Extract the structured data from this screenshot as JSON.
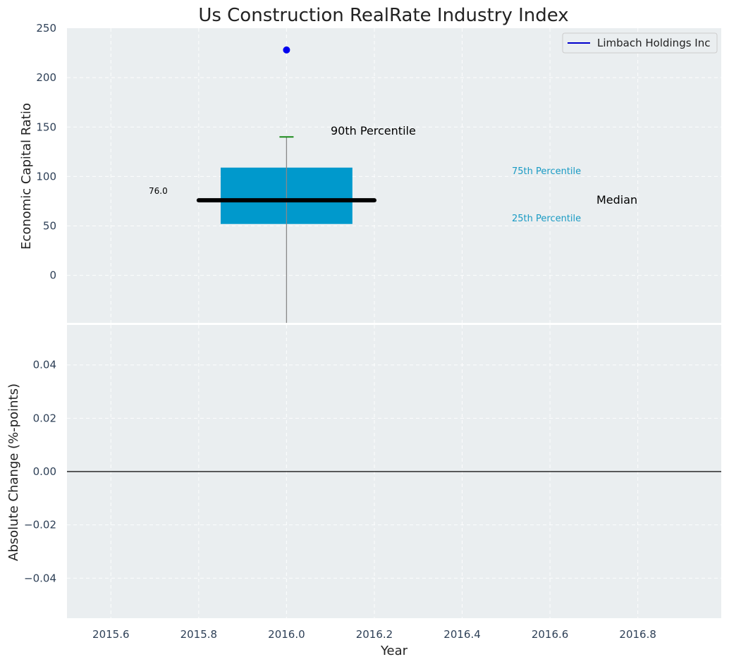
{
  "chart_data": {
    "type": "box",
    "title": "Us Construction RealRate Industry Index",
    "x_axis": {
      "label": "Year",
      "range": [
        2015.5,
        2016.99
      ],
      "ticks": [
        "2015.6",
        "2015.8",
        "2016.0",
        "2016.2",
        "2016.4",
        "2016.6",
        "2016.8"
      ],
      "tick_values": [
        2015.6,
        2015.8,
        2016.0,
        2016.2,
        2016.4,
        2016.6,
        2016.8
      ]
    },
    "top_panel": {
      "ylabel": "Economic Capital Ratio",
      "ylim": [
        -48,
        250
      ],
      "y_ticks": [
        "250",
        "200",
        "150",
        "100",
        "50",
        "0"
      ],
      "y_tick_values": [
        250,
        200,
        150,
        100,
        50,
        0
      ],
      "box": {
        "x": 2016.0,
        "q1": 52,
        "q3": 109,
        "median": 76,
        "p90": 140,
        "whisker_low": -48,
        "box_x_range": [
          2015.85,
          2016.15
        ],
        "median_x_range": [
          2015.8,
          2016.2
        ]
      },
      "company_point": {
        "name": "Limbach Holdings Inc",
        "x": 2016.0,
        "y": 228
      },
      "median_value_label": "76.0",
      "annotations": {
        "p90": "90th Percentile",
        "p75": "75th Percentile",
        "p25": "25th Percentile",
        "median": "Median"
      }
    },
    "bottom_panel": {
      "ylabel": "Absolute Change (%-points)",
      "ylim": [
        -0.055,
        0.055
      ],
      "y_ticks": [
        "0.04",
        "0.02",
        "0.00",
        "−0.02",
        "−0.04"
      ],
      "y_tick_values": [
        0.04,
        0.02,
        0.0,
        -0.02,
        -0.04
      ],
      "zero_line": 0.0
    },
    "legend": {
      "entries": [
        "Limbach Holdings Inc"
      ],
      "position": "top-right"
    },
    "grid": true,
    "colors": {
      "panel_bg": "#eaeef0",
      "box": "#0099cc",
      "median": "#000000",
      "whisker": "#888888",
      "p90_cap": "#1a8a1a",
      "point": "#0000ee",
      "legend_line": "#0000cc",
      "annotation_blue": "#1a9bc4"
    }
  }
}
